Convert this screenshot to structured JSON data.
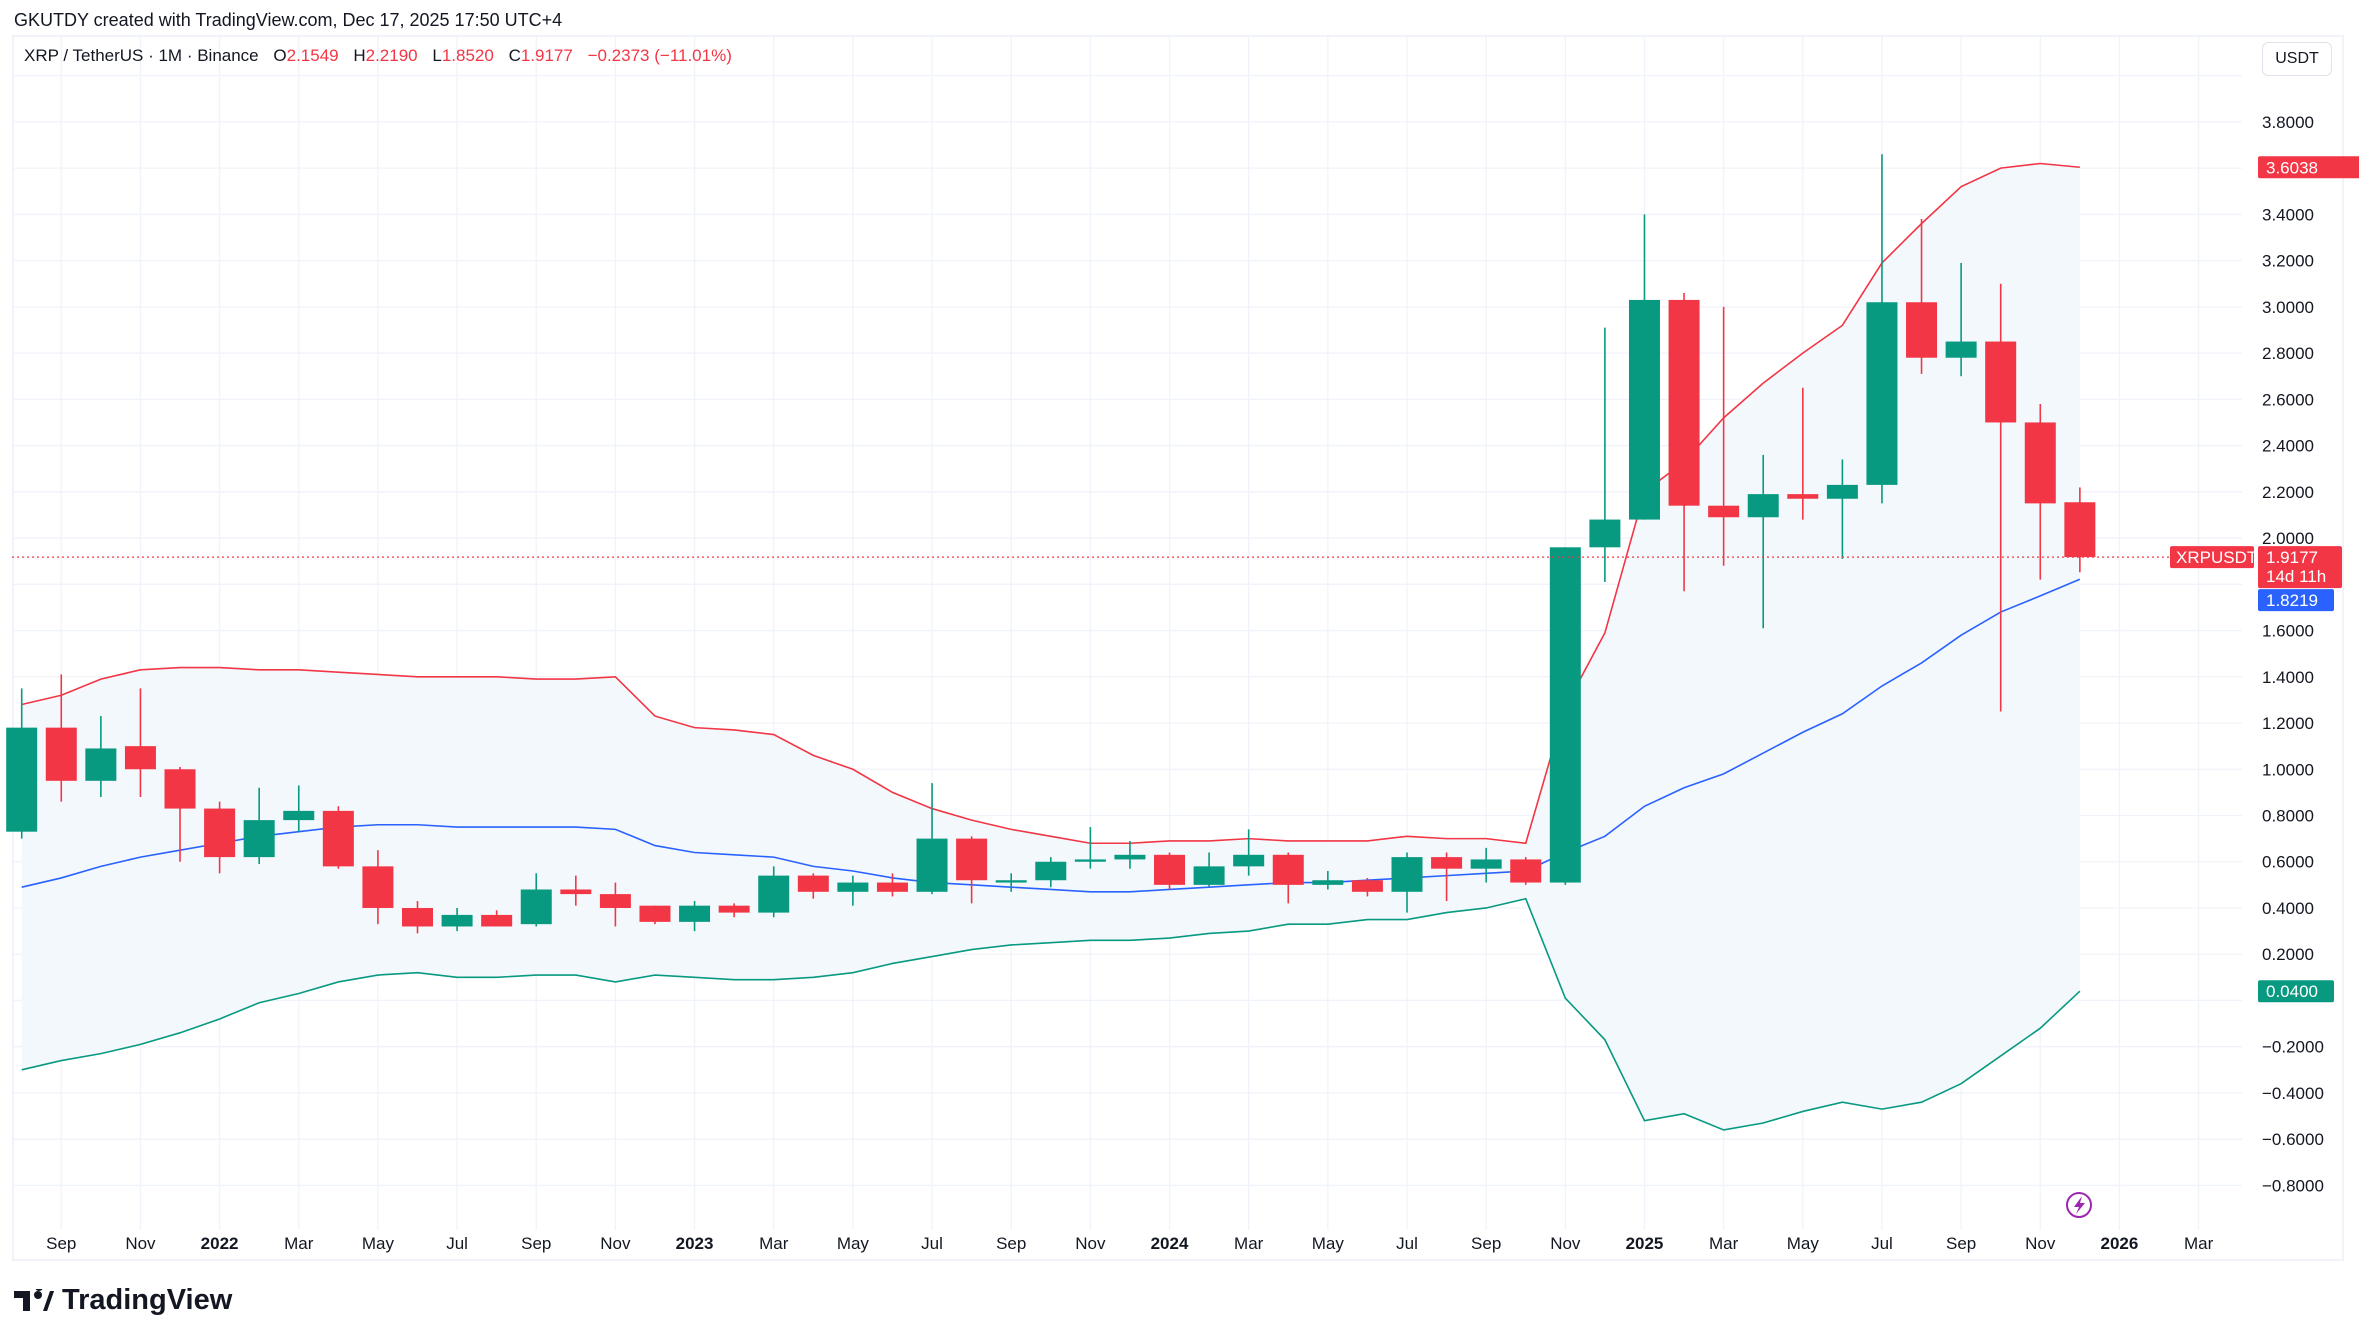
{
  "credit": "GKUTDY created with TradingView.com, Dec 17, 2025 17:50 UTC+4",
  "legend": {
    "symbol": "XRP / TetherUS · 1M · Binance",
    "open_label": "O",
    "open": "2.1549",
    "high_label": "H",
    "high": "2.2190",
    "low_label": "L",
    "low": "1.8520",
    "close_label": "C",
    "close": "1.9177",
    "change": "−0.2373 (−11.01%)"
  },
  "unit_button": "USDT",
  "logo": "TradingView",
  "price_tags": {
    "upper": "3.6038",
    "symbol": "XRPUSDT",
    "last": "1.9177",
    "countdown": "14d 11h",
    "basis": "1.8219",
    "lower": "0.0400"
  },
  "colors": {
    "up": "#089981",
    "down": "#f23645",
    "basis": "#2962ff",
    "upper": "#f23645",
    "lower": "#089981",
    "band_fill": "#f3f8fd",
    "grid": "#f0f3fa",
    "lightning": "#9c27b0"
  },
  "icons": {
    "lightning": "lightning-icon",
    "logo": "tradingview-logo-icon"
  },
  "chart_data": {
    "type": "candlestick",
    "interval": "1M",
    "ylim": [
      -0.9,
      4.0
    ],
    "grid": true,
    "y_ticks": [
      "3.8000",
      "3.4000",
      "3.2000",
      "3.0000",
      "2.8000",
      "2.6000",
      "2.4000",
      "2.2000",
      "2.0000",
      "1.6000",
      "1.4000",
      "1.2000",
      "1.0000",
      "0.8000",
      "0.6000",
      "0.4000",
      "0.2000",
      "−0.2000",
      "−0.4000",
      "−0.6000",
      "−0.8000"
    ],
    "x_ticks": [
      {
        "label": "Sep",
        "month": "2021-09"
      },
      {
        "label": "Nov",
        "month": "2021-11"
      },
      {
        "label": "2022",
        "month": "2022-01",
        "year": true
      },
      {
        "label": "Mar",
        "month": "2022-03"
      },
      {
        "label": "May",
        "month": "2022-05"
      },
      {
        "label": "Jul",
        "month": "2022-07"
      },
      {
        "label": "Sep",
        "month": "2022-09"
      },
      {
        "label": "Nov",
        "month": "2022-11"
      },
      {
        "label": "2023",
        "month": "2023-01",
        "year": true
      },
      {
        "label": "Mar",
        "month": "2023-03"
      },
      {
        "label": "May",
        "month": "2023-05"
      },
      {
        "label": "Jul",
        "month": "2023-07"
      },
      {
        "label": "Sep",
        "month": "2023-09"
      },
      {
        "label": "Nov",
        "month": "2023-11"
      },
      {
        "label": "2024",
        "month": "2024-01",
        "year": true
      },
      {
        "label": "Mar",
        "month": "2024-03"
      },
      {
        "label": "May",
        "month": "2024-05"
      },
      {
        "label": "Jul",
        "month": "2024-07"
      },
      {
        "label": "Sep",
        "month": "2024-09"
      },
      {
        "label": "Nov",
        "month": "2024-11"
      },
      {
        "label": "2025",
        "month": "2025-01",
        "year": true
      },
      {
        "label": "Mar",
        "month": "2025-03"
      },
      {
        "label": "May",
        "month": "2025-05"
      },
      {
        "label": "Jul",
        "month": "2025-07"
      },
      {
        "label": "Sep",
        "month": "2025-09"
      },
      {
        "label": "Nov",
        "month": "2025-11"
      },
      {
        "label": "2026",
        "month": "2026-01",
        "year": true
      },
      {
        "label": "Mar",
        "month": "2026-03"
      }
    ],
    "months": [
      "2021-08",
      "2021-09",
      "2021-10",
      "2021-11",
      "2021-12",
      "2022-01",
      "2022-02",
      "2022-03",
      "2022-04",
      "2022-05",
      "2022-06",
      "2022-07",
      "2022-08",
      "2022-09",
      "2022-10",
      "2022-11",
      "2022-12",
      "2023-01",
      "2023-02",
      "2023-03",
      "2023-04",
      "2023-05",
      "2023-06",
      "2023-07",
      "2023-08",
      "2023-09",
      "2023-10",
      "2023-11",
      "2023-12",
      "2024-01",
      "2024-02",
      "2024-03",
      "2024-04",
      "2024-05",
      "2024-06",
      "2024-07",
      "2024-08",
      "2024-09",
      "2024-10",
      "2024-11",
      "2024-12",
      "2025-01",
      "2025-02",
      "2025-03",
      "2025-04",
      "2025-05",
      "2025-06",
      "2025-07",
      "2025-08",
      "2025-09",
      "2025-10",
      "2025-11",
      "2025-12"
    ],
    "ohlc": [
      [
        0.73,
        1.35,
        0.7,
        1.18
      ],
      [
        1.18,
        1.41,
        0.86,
        0.95
      ],
      [
        0.95,
        1.23,
        0.88,
        1.09
      ],
      [
        1.1,
        1.35,
        0.88,
        1.0
      ],
      [
        1.0,
        1.01,
        0.6,
        0.83
      ],
      [
        0.83,
        0.86,
        0.55,
        0.62
      ],
      [
        0.62,
        0.92,
        0.59,
        0.78
      ],
      [
        0.78,
        0.93,
        0.73,
        0.82
      ],
      [
        0.82,
        0.84,
        0.57,
        0.58
      ],
      [
        0.58,
        0.65,
        0.33,
        0.4
      ],
      [
        0.4,
        0.43,
        0.29,
        0.32
      ],
      [
        0.32,
        0.4,
        0.3,
        0.37
      ],
      [
        0.37,
        0.39,
        0.32,
        0.32
      ],
      [
        0.33,
        0.55,
        0.32,
        0.48
      ],
      [
        0.48,
        0.54,
        0.41,
        0.46
      ],
      [
        0.46,
        0.51,
        0.32,
        0.4
      ],
      [
        0.41,
        0.41,
        0.33,
        0.34
      ],
      [
        0.34,
        0.43,
        0.3,
        0.41
      ],
      [
        0.41,
        0.42,
        0.36,
        0.38
      ],
      [
        0.38,
        0.58,
        0.36,
        0.54
      ],
      [
        0.54,
        0.55,
        0.44,
        0.47
      ],
      [
        0.47,
        0.54,
        0.41,
        0.51
      ],
      [
        0.51,
        0.55,
        0.45,
        0.47
      ],
      [
        0.47,
        0.94,
        0.46,
        0.7
      ],
      [
        0.7,
        0.71,
        0.42,
        0.52
      ],
      [
        0.51,
        0.55,
        0.47,
        0.52
      ],
      [
        0.52,
        0.62,
        0.49,
        0.6
      ],
      [
        0.6,
        0.75,
        0.57,
        0.61
      ],
      [
        0.61,
        0.69,
        0.57,
        0.63
      ],
      [
        0.63,
        0.64,
        0.48,
        0.5
      ],
      [
        0.5,
        0.64,
        0.49,
        0.58
      ],
      [
        0.58,
        0.74,
        0.54,
        0.63
      ],
      [
        0.63,
        0.64,
        0.42,
        0.5
      ],
      [
        0.5,
        0.56,
        0.48,
        0.52
      ],
      [
        0.52,
        0.53,
        0.45,
        0.47
      ],
      [
        0.47,
        0.64,
        0.38,
        0.62
      ],
      [
        0.62,
        0.64,
        0.43,
        0.57
      ],
      [
        0.57,
        0.66,
        0.51,
        0.61
      ],
      [
        0.61,
        0.62,
        0.5,
        0.51
      ],
      [
        0.51,
        1.96,
        0.5,
        1.96
      ],
      [
        1.96,
        2.91,
        1.81,
        2.08
      ],
      [
        2.08,
        3.4,
        2.08,
        3.03
      ],
      [
        3.03,
        3.06,
        1.77,
        2.14
      ],
      [
        2.14,
        3.0,
        1.88,
        2.09
      ],
      [
        2.09,
        2.36,
        1.61,
        2.19
      ],
      [
        2.19,
        2.65,
        2.08,
        2.17
      ],
      [
        2.17,
        2.34,
        1.91,
        2.23
      ],
      [
        2.23,
        3.66,
        2.15,
        3.02
      ],
      [
        3.02,
        3.38,
        2.71,
        2.78
      ],
      [
        2.78,
        3.19,
        2.7,
        2.85
      ],
      [
        2.85,
        3.1,
        1.25,
        2.5
      ],
      [
        2.5,
        2.58,
        1.82,
        2.15
      ],
      [
        2.1549,
        2.219,
        1.852,
        1.9177
      ]
    ],
    "bollinger": {
      "upper": [
        1.28,
        1.32,
        1.39,
        1.43,
        1.44,
        1.44,
        1.43,
        1.43,
        1.42,
        1.41,
        1.4,
        1.4,
        1.4,
        1.39,
        1.39,
        1.4,
        1.23,
        1.18,
        1.17,
        1.15,
        1.06,
        1.0,
        0.9,
        0.83,
        0.78,
        0.74,
        0.71,
        0.68,
        0.68,
        0.69,
        0.69,
        0.7,
        0.69,
        0.69,
        0.69,
        0.71,
        0.7,
        0.7,
        0.68,
        1.27,
        1.59,
        2.2,
        2.33,
        2.52,
        2.67,
        2.8,
        2.92,
        3.19,
        3.36,
        3.52,
        3.6,
        3.62,
        3.6038
      ],
      "basis": [
        0.49,
        0.53,
        0.58,
        0.62,
        0.65,
        0.68,
        0.71,
        0.73,
        0.75,
        0.76,
        0.76,
        0.75,
        0.75,
        0.75,
        0.75,
        0.74,
        0.67,
        0.64,
        0.63,
        0.62,
        0.58,
        0.56,
        0.53,
        0.51,
        0.5,
        0.49,
        0.48,
        0.47,
        0.47,
        0.48,
        0.49,
        0.5,
        0.51,
        0.51,
        0.52,
        0.53,
        0.54,
        0.55,
        0.56,
        0.64,
        0.71,
        0.84,
        0.92,
        0.98,
        1.07,
        1.16,
        1.24,
        1.36,
        1.46,
        1.58,
        1.68,
        1.75,
        1.8219
      ],
      "lower": [
        -0.3,
        -0.26,
        -0.23,
        -0.19,
        -0.14,
        -0.08,
        -0.01,
        0.03,
        0.08,
        0.11,
        0.12,
        0.1,
        0.1,
        0.11,
        0.11,
        0.08,
        0.11,
        0.1,
        0.09,
        0.09,
        0.1,
        0.12,
        0.16,
        0.19,
        0.22,
        0.24,
        0.25,
        0.26,
        0.26,
        0.27,
        0.29,
        0.3,
        0.33,
        0.33,
        0.35,
        0.35,
        0.38,
        0.4,
        0.44,
        0.01,
        -0.17,
        -0.52,
        -0.49,
        -0.56,
        -0.53,
        -0.48,
        -0.44,
        -0.47,
        -0.44,
        -0.36,
        -0.24,
        -0.12,
        0.04
      ]
    },
    "last_price": 1.9177
  }
}
